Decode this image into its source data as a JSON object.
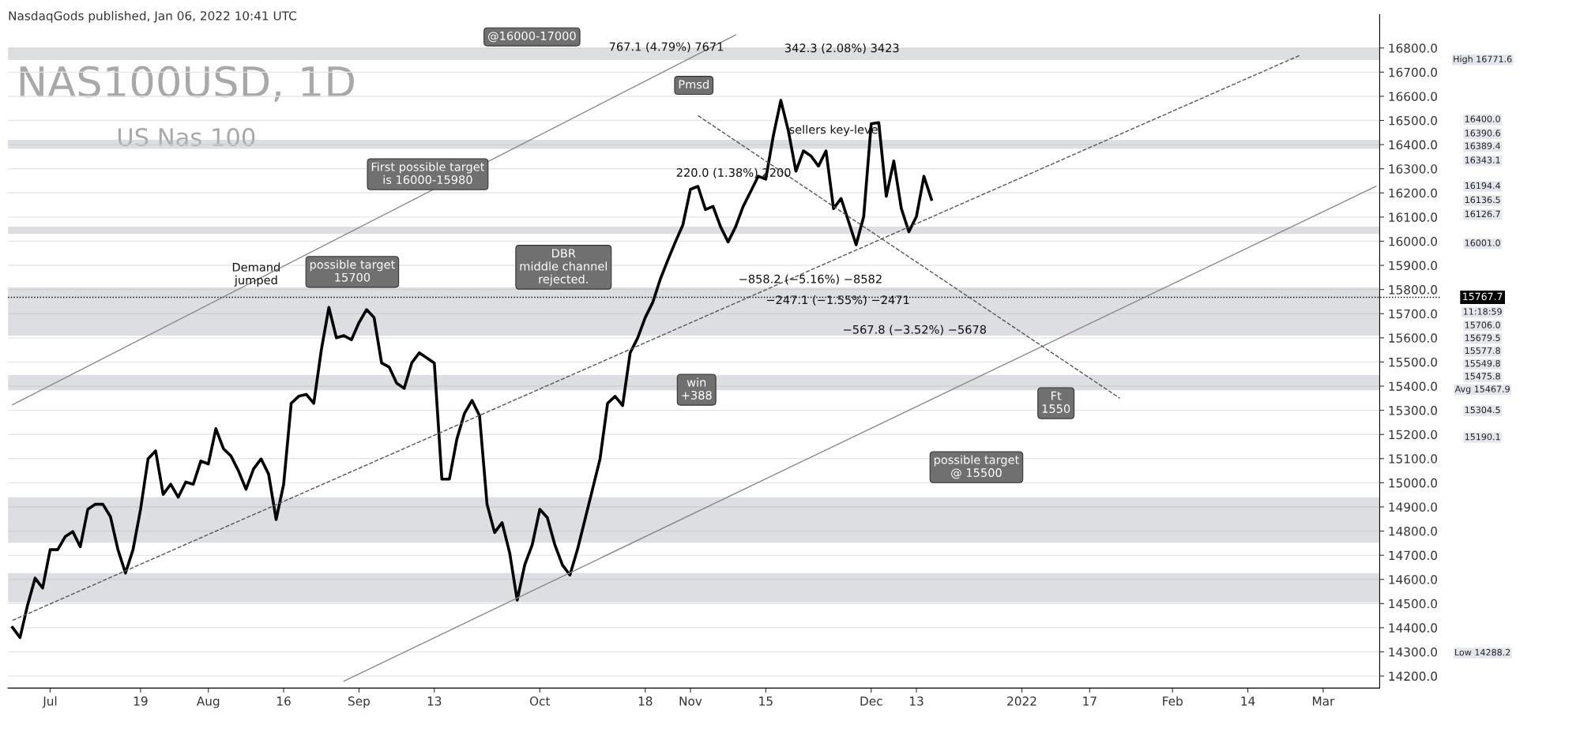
{
  "chart_data": {
    "type": "line",
    "title": "NAS100USD, 1D",
    "subtitle": "US Nas 100",
    "marker": "none",
    "grid": "y",
    "categories": [
      null,
      null,
      null,
      null,
      null,
      "Jul",
      null,
      null,
      null,
      null,
      null,
      null,
      null,
      null,
      null,
      null,
      null,
      "19",
      null,
      null,
      null,
      null,
      null,
      null,
      null,
      null,
      "Aug",
      null,
      null,
      null,
      null,
      null,
      null,
      null,
      null,
      null,
      "16",
      null,
      null,
      null,
      null,
      null,
      null,
      null,
      null,
      null,
      "Sep",
      null,
      null,
      null,
      null,
      null,
      null,
      null,
      null,
      null,
      "13",
      null,
      null,
      null,
      null,
      null,
      null,
      null,
      null,
      null,
      null,
      null,
      null,
      null,
      "Oct",
      null,
      null,
      null,
      null,
      null,
      null,
      null,
      null,
      null,
      null,
      null,
      null,
      null,
      "18",
      null,
      null,
      null,
      null,
      null,
      "Nov",
      null,
      null,
      null,
      null,
      null,
      null,
      null,
      null,
      null,
      "15",
      null,
      null,
      null,
      null,
      null,
      null,
      null,
      null,
      null,
      null,
      null,
      null,
      null,
      "Dec",
      null,
      null,
      null,
      null,
      null,
      "13",
      null,
      null,
      null,
      null,
      null,
      null,
      null,
      null,
      null,
      null,
      null,
      null,
      null,
      "2022",
      null,
      null,
      null,
      null,
      null,
      null,
      null,
      null,
      "17",
      null,
      null,
      null,
      null,
      null,
      null,
      null,
      null,
      null,
      null,
      "Feb",
      null,
      null,
      null,
      null,
      null,
      null,
      null,
      null,
      null,
      "14",
      null,
      null,
      null,
      null,
      null,
      null,
      null,
      null,
      null,
      "Mar",
      null,
      null,
      null,
      null,
      null,
      null,
      null
    ],
    "ylim": [
      14150,
      16938
    ],
    "yticks": [
      {
        "value": 14200,
        "label": "14200.0"
      },
      {
        "value": 14300,
        "label": "14300.0"
      },
      {
        "value": 14400,
        "label": "14400.0"
      },
      {
        "value": 14500,
        "label": "14500.0"
      },
      {
        "value": 14600,
        "label": "14600.0"
      },
      {
        "value": 14700,
        "label": "14700.0"
      },
      {
        "value": 14800,
        "label": "14800.0"
      },
      {
        "value": 14900,
        "label": "14900.0"
      },
      {
        "value": 15000,
        "label": "15000.0"
      },
      {
        "value": 15100,
        "label": "15100.0"
      },
      {
        "value": 15200,
        "label": "15200.0"
      },
      {
        "value": 15300,
        "label": "15300.0"
      },
      {
        "value": 15400,
        "label": "15400.0"
      },
      {
        "value": 15500,
        "label": "15500.0"
      },
      {
        "value": 15600,
        "label": "15600.0"
      },
      {
        "value": 15700,
        "label": "15700.0"
      },
      {
        "value": 15800,
        "label": "15800.0"
      },
      {
        "value": 15900,
        "label": "15900.0"
      },
      {
        "value": 16000,
        "label": "16000.0"
      },
      {
        "value": 16100,
        "label": "16100.0"
      },
      {
        "value": 16200,
        "label": "16200.0"
      },
      {
        "value": 16300,
        "label": "16300.0"
      },
      {
        "value": 16400,
        "label": "16400.0"
      },
      {
        "value": 16500,
        "label": "16500.0"
      },
      {
        "value": 16600,
        "label": "16600.0"
      },
      {
        "value": 16700,
        "label": "16700.0"
      },
      {
        "value": 16800,
        "label": "16800.0"
      }
    ],
    "series": [
      {
        "color": "#000000",
        "line_style": "solid",
        "values": [
          14401,
          14359,
          14493,
          14605,
          14564,
          14723,
          14723,
          14777,
          14798,
          14735,
          14890,
          14911,
          14911,
          14860,
          14723,
          14626,
          14723,
          14890,
          15099,
          15132,
          14952,
          14994,
          14940,
          15003,
          14994,
          15090,
          15078,
          15224,
          15141,
          15111,
          15049,
          14973,
          15057,
          15099,
          15036,
          14848,
          14994,
          15329,
          15358,
          15366,
          15329,
          15550,
          15726,
          15600,
          15609,
          15592,
          15663,
          15717,
          15684,
          15496,
          15479,
          15412,
          15391,
          15496,
          15538,
          15517,
          15496,
          15015,
          15015,
          15182,
          15287,
          15341,
          15278,
          14911,
          14794,
          14835,
          14710,
          14514,
          14660,
          14743,
          14890,
          14856,
          14743,
          14660,
          14618,
          14723,
          14848,
          14973,
          15099,
          15329,
          15358,
          15320,
          15538,
          15600,
          15684,
          15747,
          15843,
          15922,
          15997,
          16068,
          16215,
          16227,
          16131,
          16144,
          16060,
          15997,
          16060,
          16144,
          16206,
          16269,
          16257,
          16436,
          16583,
          16457,
          16290,
          16374,
          16353,
          16311,
          16374,
          16135,
          16177,
          16081,
          15985,
          16102,
          16486,
          16491,
          16186,
          16332,
          16135,
          16039,
          16102,
          16269,
          16173,
          null,
          null,
          null,
          null,
          null,
          null,
          null,
          null,
          null,
          null,
          null,
          null,
          null,
          null,
          null,
          null,
          null,
          null,
          null,
          null,
          null,
          null,
          null,
          null,
          null,
          null,
          null,
          null,
          null,
          null,
          null,
          null,
          null,
          null,
          null,
          null,
          null,
          null,
          null,
          null,
          null,
          null,
          null,
          null,
          null,
          null,
          null,
          null,
          null,
          null,
          null,
          null,
          null,
          null,
          null,
          null,
          null,
          null,
          null
        ]
      },
      {
        "color": "#555555",
        "line_style": "dashed",
        "values": [
          14430,
          null,
          null,
          null,
          null,
          null,
          null,
          null,
          null,
          null,
          null,
          null,
          null,
          null,
          null,
          null,
          null,
          null,
          null,
          null,
          null,
          null,
          null,
          null,
          null,
          null,
          null,
          null,
          null,
          null,
          null,
          null,
          null,
          null,
          null,
          null,
          null,
          null,
          null,
          null,
          null,
          null,
          null,
          null,
          null,
          null,
          null,
          null,
          null,
          null,
          null,
          null,
          null,
          null,
          null,
          null,
          null,
          null,
          null,
          null,
          null,
          null,
          null,
          null,
          null,
          null,
          null,
          null,
          null,
          null,
          null,
          null,
          null,
          null,
          null,
          null,
          null,
          null,
          null,
          null,
          null,
          null,
          null,
          null,
          null,
          null,
          null,
          null,
          null,
          null,
          null,
          null,
          null,
          null,
          null,
          null,
          null,
          null,
          null,
          null,
          null,
          null,
          null,
          null,
          null,
          null,
          null,
          null,
          null,
          null,
          null,
          null,
          null,
          null,
          null,
          null,
          null,
          null,
          null,
          null,
          null,
          null,
          null,
          null,
          null,
          null,
          null,
          null,
          null,
          null,
          null,
          null,
          null,
          null,
          null,
          null,
          null,
          null,
          null,
          null,
          null,
          null,
          null,
          null,
          null,
          null,
          null,
          null,
          null,
          null,
          null,
          null,
          null,
          null,
          null,
          null,
          null,
          null,
          null,
          null,
          null,
          null,
          null,
          null,
          null,
          null,
          null,
          null,
          null,
          null,
          null,
          16771,
          null,
          null,
          null,
          null,
          null,
          null,
          null,
          null,
          null,
          null
        ]
      },
      {
        "color": "#888888",
        "line_style": "solid",
        "values": [
          15323,
          null,
          null,
          null,
          null,
          null,
          null,
          null,
          null,
          null,
          null,
          null,
          null,
          null,
          null,
          null,
          null,
          null,
          null,
          null,
          null,
          null,
          null,
          null,
          null,
          null,
          null,
          null,
          null,
          null,
          null,
          null,
          null,
          null,
          null,
          null,
          null,
          null,
          null,
          null,
          null,
          null,
          null,
          null,
          null,
          null,
          null,
          null,
          null,
          null,
          null,
          null,
          null,
          null,
          null,
          null,
          null,
          null,
          null,
          null,
          null,
          null,
          null,
          null,
          null,
          null,
          null,
          null,
          null,
          null,
          null,
          null,
          null,
          null,
          null,
          null,
          null,
          null,
          null,
          null,
          null,
          null,
          null,
          null,
          null,
          null,
          null,
          null,
          null,
          null,
          null,
          null,
          null,
          null,
          null,
          null,
          16854,
          null,
          null,
          null,
          null,
          null,
          null,
          null,
          null,
          null,
          null,
          null,
          null,
          null,
          null,
          null,
          null,
          null,
          null,
          null,
          null,
          null,
          null,
          null,
          null,
          null,
          null,
          null,
          null,
          null,
          null,
          null,
          null,
          null,
          null,
          null,
          null,
          null,
          null,
          null,
          null,
          null,
          null,
          null,
          null,
          null,
          null,
          null,
          null,
          null,
          null,
          null,
          null,
          null,
          null,
          null,
          null,
          null,
          null,
          null,
          null,
          null,
          null,
          null,
          null,
          null,
          null,
          null,
          null,
          null,
          null,
          null,
          null,
          null,
          null,
          null,
          null,
          null,
          null,
          null,
          null,
          null,
          null,
          null,
          null,
          null
        ]
      },
      {
        "color": "#888888",
        "line_style": "solid",
        "values": [
          null,
          null,
          null,
          null,
          null,
          null,
          null,
          null,
          null,
          null,
          null,
          null,
          null,
          null,
          null,
          null,
          null,
          null,
          null,
          null,
          null,
          null,
          null,
          null,
          null,
          null,
          null,
          null,
          null,
          null,
          null,
          null,
          null,
          null,
          null,
          null,
          null,
          null,
          null,
          null,
          null,
          null,
          null,
          null,
          14179,
          null,
          null,
          null,
          null,
          null,
          null,
          null,
          null,
          null,
          null,
          null,
          null,
          null,
          null,
          null,
          null,
          null,
          null,
          null,
          null,
          null,
          null,
          null,
          null,
          null,
          null,
          null,
          null,
          null,
          null,
          null,
          null,
          null,
          null,
          null,
          null,
          null,
          null,
          null,
          null,
          null,
          null,
          null,
          null,
          null,
          null,
          null,
          null,
          null,
          null,
          null,
          null,
          null,
          null,
          null,
          null,
          null,
          null,
          null,
          null,
          null,
          null,
          null,
          null,
          null,
          null,
          null,
          null,
          null,
          null,
          null,
          null,
          null,
          null,
          null,
          null,
          null,
          null,
          null,
          null,
          null,
          null,
          null,
          null,
          null,
          null,
          null,
          null,
          null,
          null,
          null,
          null,
          null,
          null,
          null,
          null,
          null,
          null,
          null,
          null,
          null,
          null,
          null,
          null,
          null,
          null,
          null,
          null,
          null,
          null,
          null,
          null,
          null,
          null,
          null,
          null,
          null,
          null,
          null,
          null,
          null,
          null,
          null,
          null,
          null,
          null,
          null,
          null,
          null,
          null,
          null,
          null,
          null,
          null,
          null,
          null,
          16227
        ]
      },
      {
        "color": "#555555",
        "line_style": "dashed",
        "values": [
          null,
          null,
          null,
          null,
          null,
          null,
          null,
          null,
          null,
          null,
          null,
          null,
          null,
          null,
          null,
          null,
          null,
          null,
          null,
          null,
          null,
          null,
          null,
          null,
          null,
          null,
          null,
          null,
          null,
          null,
          null,
          null,
          null,
          null,
          null,
          null,
          null,
          null,
          null,
          null,
          null,
          null,
          null,
          null,
          null,
          null,
          null,
          null,
          null,
          null,
          null,
          null,
          null,
          null,
          null,
          null,
          null,
          null,
          null,
          null,
          null,
          null,
          null,
          null,
          null,
          null,
          null,
          null,
          null,
          null,
          null,
          null,
          null,
          null,
          null,
          null,
          null,
          null,
          null,
          null,
          null,
          null,
          null,
          null,
          null,
          null,
          null,
          null,
          null,
          null,
          null,
          16520,
          null,
          null,
          null,
          null,
          null,
          null,
          null,
          null,
          null,
          null,
          null,
          null,
          null,
          null,
          null,
          null,
          null,
          null,
          null,
          null,
          null,
          null,
          null,
          null,
          null,
          null,
          null,
          null,
          null,
          null,
          null,
          null,
          null,
          null,
          null,
          null,
          null,
          null,
          null,
          null,
          null,
          null,
          null,
          null,
          null,
          null,
          null,
          null,
          null,
          null,
          null,
          null,
          null,
          null,
          null,
          15350,
          null,
          null,
          null,
          null,
          null,
          null,
          null,
          null,
          null,
          null,
          null,
          null,
          null,
          null,
          null,
          null,
          null,
          null,
          null,
          null,
          null,
          null,
          null,
          null,
          null,
          null,
          null,
          null,
          null,
          null,
          null,
          null,
          null,
          null
        ]
      }
    ],
    "ref_lines": [
      {
        "axis": "y",
        "value": 15767.7,
        "label": "15767.7",
        "color": "#000000",
        "line_style": "dotted"
      }
    ],
    "bands": [
      {
        "axis": "y",
        "from": 16750,
        "to": 16800,
        "color": "#b2b5be"
      },
      {
        "axis": "y",
        "from": 16382,
        "to": 16420,
        "color": "#b2b5be"
      },
      {
        "axis": "y",
        "from": 16030,
        "to": 16060,
        "color": "#b2b5be"
      },
      {
        "axis": "y",
        "from": 15609,
        "to": 15809,
        "color": "#b2b5be"
      },
      {
        "axis": "y",
        "from": 15383,
        "to": 15446,
        "color": "#b2b5be"
      },
      {
        "axis": "y",
        "from": 14752,
        "to": 14940,
        "color": "#b2b5be"
      },
      {
        "axis": "y",
        "from": 14505,
        "to": 14626,
        "color": "#b2b5be"
      }
    ],
    "annotations": [
      "NasdaqGods published, Jan 06, 2022 10:41 UTC",
      "@16000-17000",
      "First possible target\nis 16000-15980",
      "possible target\n15700",
      "Demand\njumped",
      "DBR\nmiddle channel\nrejected.",
      "win\n+388",
      "Pmsd",
      "sellers key-level",
      "Ft\n1550",
      "possible target\n@ 15500",
      "767.1 (4.79%) 7671",
      "342.3 (2.08%) 3423",
      "220.0 (1.38%) 2200",
      "−858.2 (−5.16%) −8582",
      "−247.1 (−1.55%) −2471",
      "−567.8 (−3.52%) −5678",
      "High 16771.6",
      "16400.0",
      "16390.6",
      "16389.4",
      "16343.1",
      "16194.4",
      "16136.5",
      "16126.7",
      "16001.0",
      "11:18:59",
      "15706.0",
      "15679.5",
      "15577.8",
      "15549.8",
      "15475.8",
      "Avg 15467.9",
      "15304.5",
      "15190.1",
      "Low 14288.2"
    ]
  }
}
